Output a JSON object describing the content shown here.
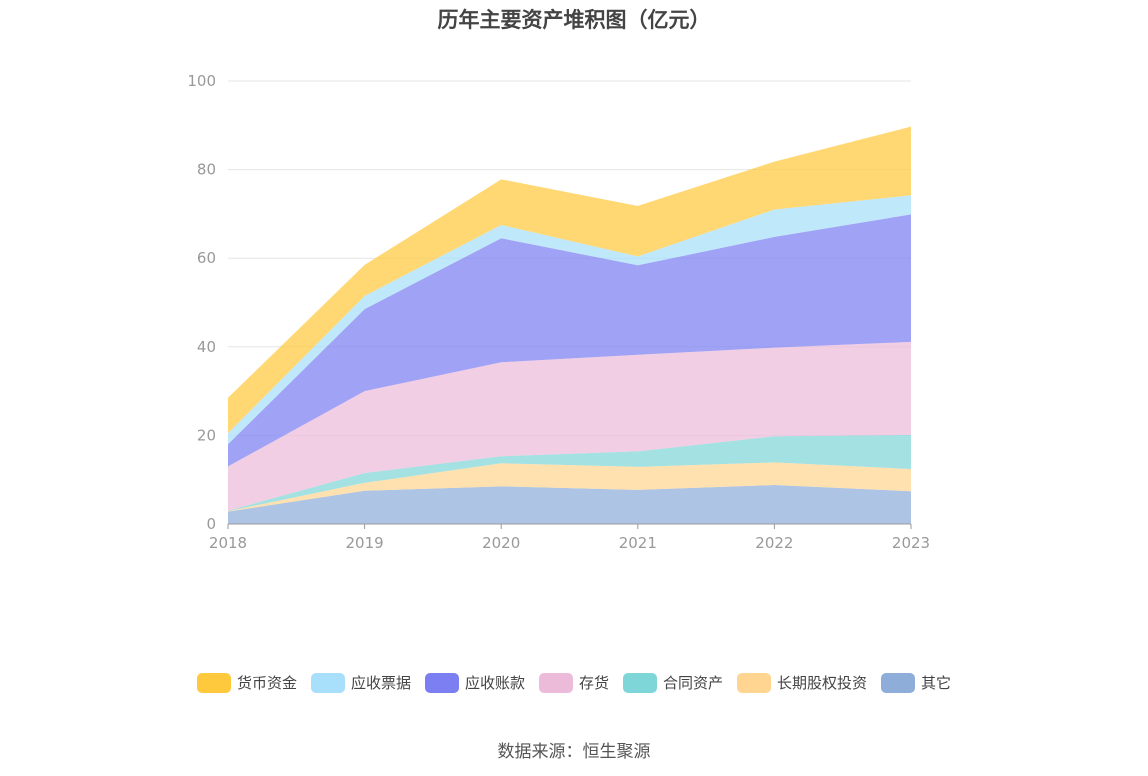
{
  "chart_data": {
    "type": "area",
    "stacked": true,
    "title": "历年主要资产堆积图（亿元）",
    "source": "数据来源：恒生聚源",
    "x": [
      "2018",
      "2019",
      "2020",
      "2021",
      "2022",
      "2023"
    ],
    "ylim": [
      0,
      100
    ],
    "yticks": [
      0,
      20,
      40,
      60,
      80,
      100
    ],
    "grid": true,
    "legend_position": "bottom",
    "series": [
      {
        "name": "其它",
        "color": "#8eadd9",
        "values": [
          2.8,
          7.5,
          8.5,
          7.7,
          8.8,
          7.4
        ]
      },
      {
        "name": "长期股权投资",
        "color": "#ffd591",
        "values": [
          0.1,
          1.8,
          5.2,
          5.2,
          5.1,
          5.0
        ]
      },
      {
        "name": "合同资产",
        "color": "#7fd6d8",
        "values": [
          0.1,
          2.2,
          1.6,
          3.5,
          5.9,
          7.7
        ]
      },
      {
        "name": "存货",
        "color": "#ebbbd9",
        "values": [
          10.0,
          18.5,
          21.2,
          21.8,
          20.0,
          21.0
        ]
      },
      {
        "name": "应收账款",
        "color": "#7b7ff1",
        "values": [
          5.0,
          18.5,
          28.0,
          20.2,
          25.0,
          28.8
        ]
      },
      {
        "name": "应收票据",
        "color": "#a8dffa",
        "values": [
          2.5,
          3.0,
          3.0,
          2.0,
          6.2,
          4.3
        ]
      },
      {
        "name": "货币资金",
        "color": "#ffc93d",
        "values": [
          8.0,
          7.0,
          10.3,
          11.4,
          10.8,
          15.5
        ]
      }
    ]
  }
}
